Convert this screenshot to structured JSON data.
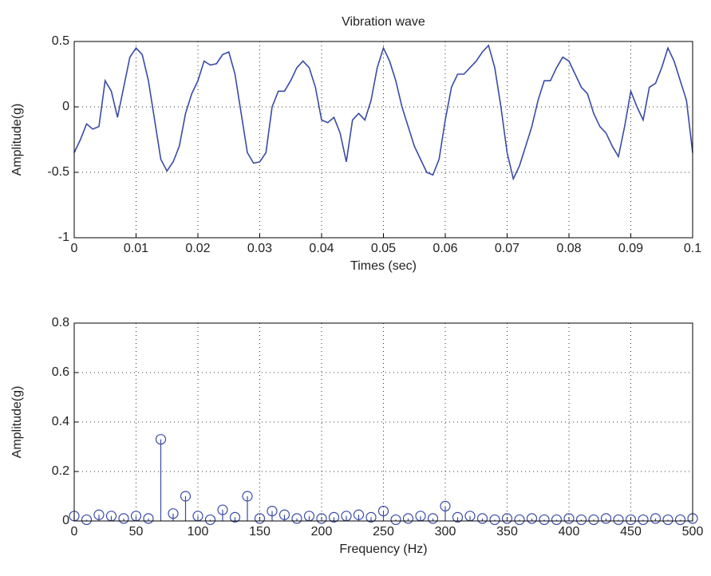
{
  "chart_data": [
    {
      "type": "line",
      "title": "Vibration wave",
      "xlabel": "Times (sec)",
      "ylabel": "Amplitude(g)",
      "x": [
        0,
        0.001,
        0.002,
        0.003,
        0.004,
        0.005,
        0.006,
        0.007,
        0.008,
        0.009,
        0.01,
        0.011,
        0.012,
        0.013,
        0.014,
        0.015,
        0.016,
        0.017,
        0.018,
        0.019,
        0.02,
        0.021,
        0.022,
        0.023,
        0.024,
        0.025,
        0.026,
        0.027,
        0.028,
        0.029,
        0.03,
        0.031,
        0.032,
        0.033,
        0.034,
        0.035,
        0.036,
        0.037,
        0.038,
        0.039,
        0.04,
        0.041,
        0.042,
        0.043,
        0.044,
        0.045,
        0.046,
        0.047,
        0.048,
        0.049,
        0.05,
        0.051,
        0.052,
        0.053,
        0.054,
        0.055,
        0.056,
        0.057,
        0.058,
        0.059,
        0.06,
        0.061,
        0.062,
        0.063,
        0.064,
        0.065,
        0.066,
        0.067,
        0.068,
        0.069,
        0.07,
        0.071,
        0.072,
        0.073,
        0.074,
        0.075,
        0.076,
        0.077,
        0.078,
        0.079,
        0.08,
        0.081,
        0.082,
        0.083,
        0.084,
        0.085,
        0.086,
        0.087,
        0.088,
        0.089,
        0.09,
        0.091,
        0.092,
        0.093,
        0.094,
        0.095,
        0.096,
        0.097,
        0.098,
        0.099,
        0.1
      ],
      "values": [
        -0.35,
        -0.25,
        -0.13,
        -0.17,
        -0.15,
        0.2,
        0.12,
        -0.08,
        0.15,
        0.38,
        0.45,
        0.4,
        0.2,
        -0.1,
        -0.4,
        -0.49,
        -0.42,
        -0.3,
        -0.05,
        0.1,
        0.2,
        0.35,
        0.32,
        0.33,
        0.4,
        0.42,
        0.25,
        -0.05,
        -0.35,
        -0.43,
        -0.42,
        -0.35,
        0,
        0.12,
        0.12,
        0.2,
        0.3,
        0.35,
        0.3,
        0.15,
        -0.1,
        -0.12,
        -0.08,
        -0.2,
        -0.42,
        -0.1,
        -0.05,
        -0.1,
        0.05,
        0.3,
        0.45,
        0.35,
        0.2,
        0,
        -0.15,
        -0.3,
        -0.4,
        -0.5,
        -0.52,
        -0.4,
        -0.1,
        0.15,
        0.25,
        0.25,
        0.3,
        0.35,
        0.42,
        0.47,
        0.3,
        0,
        -0.35,
        -0.55,
        -0.45,
        -0.3,
        -0.15,
        0.05,
        0.2,
        0.2,
        0.3,
        0.38,
        0.35,
        0.25,
        0.15,
        0.1,
        -0.05,
        -0.15,
        -0.2,
        -0.3,
        -0.38,
        -0.15,
        0.12,
        0,
        -0.1,
        0.15,
        0.18,
        0.3,
        0.45,
        0.35,
        0.2,
        0.05,
        -0.35
      ],
      "color": "#3a4ba6",
      "xlim": [
        0,
        0.1
      ],
      "ylim": [
        -1,
        0.5
      ],
      "xticks": [
        0,
        0.01,
        0.02,
        0.03,
        0.04,
        0.05,
        0.06,
        0.07,
        0.08,
        0.09,
        0.1
      ],
      "yticks": [
        -1,
        -0.5,
        0,
        0.5
      ],
      "grid": true
    },
    {
      "type": "stem",
      "xlabel": "Frequency (Hz)",
      "ylabel": "Amplitude(g)",
      "x": [
        0,
        10,
        20,
        30,
        40,
        50,
        60,
        70,
        80,
        90,
        100,
        110,
        120,
        130,
        140,
        150,
        160,
        170,
        180,
        190,
        200,
        210,
        220,
        230,
        240,
        250,
        260,
        270,
        280,
        290,
        300,
        310,
        320,
        330,
        340,
        350,
        360,
        370,
        380,
        390,
        400,
        410,
        420,
        430,
        440,
        450,
        460,
        470,
        480,
        490,
        500
      ],
      "values": [
        0.02,
        0.005,
        0.025,
        0.02,
        0.01,
        0.02,
        0.01,
        0.33,
        0.03,
        0.1,
        0.02,
        0.005,
        0.045,
        0.015,
        0.1,
        0.01,
        0.04,
        0.025,
        0.01,
        0.02,
        0.01,
        0.015,
        0.02,
        0.025,
        0.015,
        0.04,
        0.005,
        0.01,
        0.02,
        0.01,
        0.06,
        0.015,
        0.02,
        0.01,
        0.005,
        0.01,
        0.005,
        0.01,
        0.005,
        0.005,
        0.01,
        0.005,
        0.005,
        0.01,
        0.005,
        0.005,
        0.005,
        0.01,
        0.005,
        0.005,
        0.01
      ],
      "color": "#3a4ba6",
      "xlim": [
        0,
        500
      ],
      "ylim": [
        0,
        0.8
      ],
      "xticks": [
        0,
        50,
        100,
        150,
        200,
        250,
        300,
        350,
        400,
        450,
        500
      ],
      "yticks": [
        0,
        0.2,
        0.4,
        0.6,
        0.8
      ],
      "grid": true
    }
  ]
}
